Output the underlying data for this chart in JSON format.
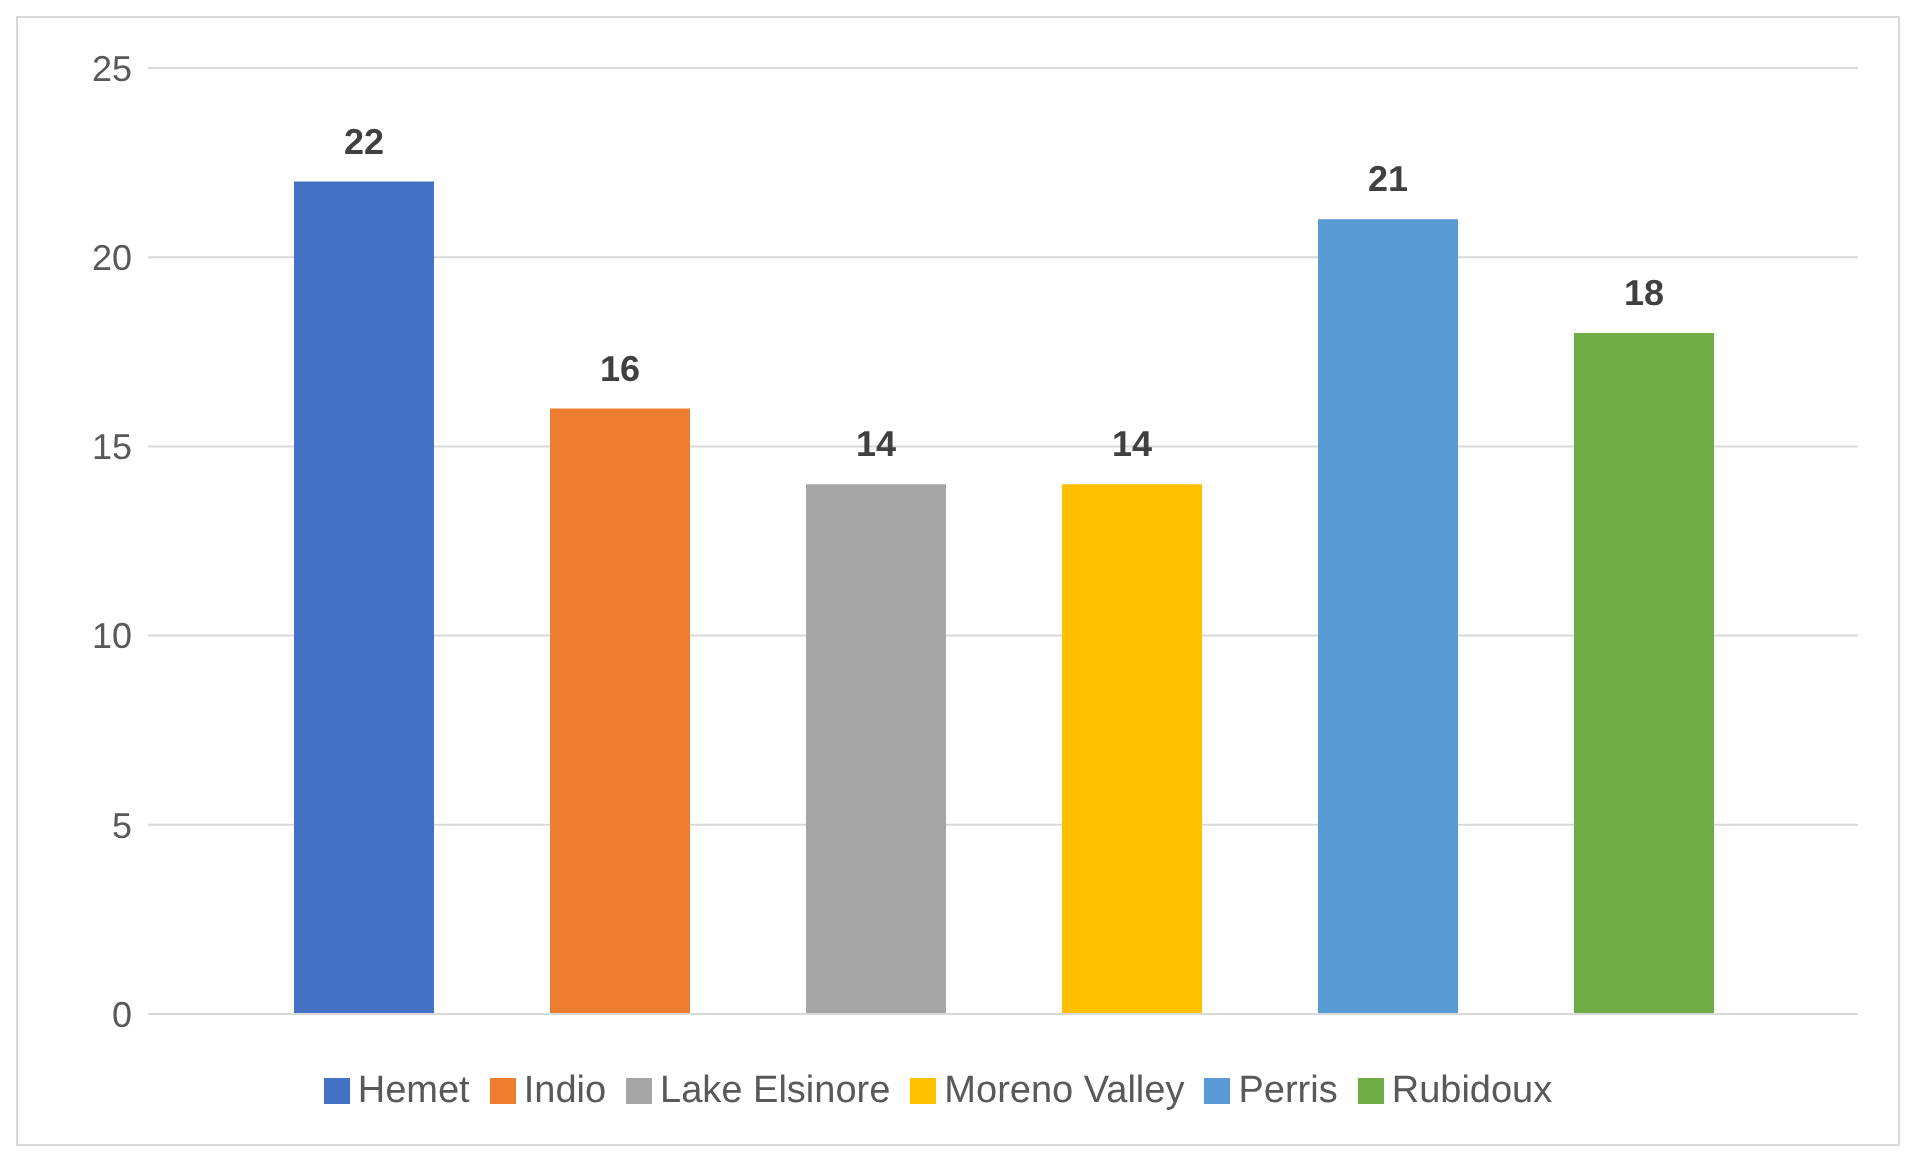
{
  "chart_data": {
    "type": "bar",
    "categories": [
      null
    ],
    "series": [
      {
        "name": "Hemet",
        "color": "#4472c4",
        "values": [
          22
        ]
      },
      {
        "name": "Indio",
        "color": "#ed7d31",
        "values": [
          16
        ]
      },
      {
        "name": "Lake Elsinore",
        "color": "#a5a5a5",
        "values": [
          14
        ]
      },
      {
        "name": "Moreno Valley",
        "color": "#ffc000",
        "values": [
          14
        ]
      },
      {
        "name": "Perris",
        "color": "#5b9bd5",
        "values": [
          21
        ]
      },
      {
        "name": "Rubidoux",
        "color": "#70ad47",
        "values": [
          18
        ]
      }
    ],
    "ylim": [
      0,
      25
    ],
    "yticks": [
      0,
      5,
      10,
      15,
      20,
      25
    ],
    "grid": "y",
    "legend": "bottom",
    "data_labels": true
  }
}
